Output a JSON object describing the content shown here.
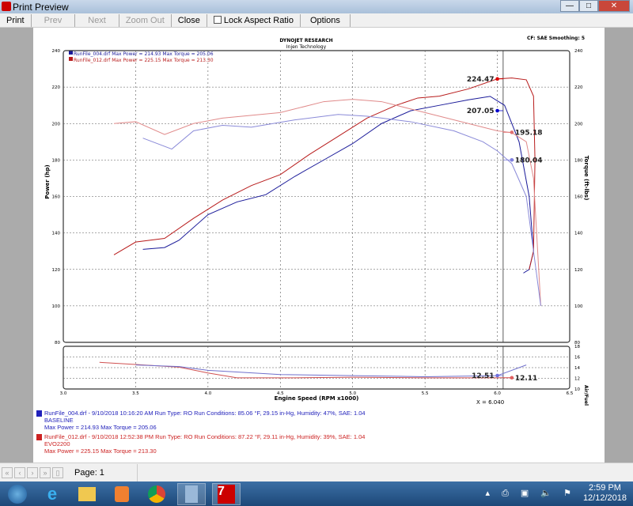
{
  "window": {
    "title": "Print Preview",
    "min": "—",
    "max": "□",
    "close": "✕"
  },
  "toolbar": {
    "print": "Print",
    "prev": "Prev",
    "next": "Next",
    "zoom_out": "Zoom Out",
    "close": "Close",
    "lock_aspect": "Lock Aspect Ratio",
    "lock_checked": false,
    "options": "Options"
  },
  "report": {
    "company": "DYNOJET RESEARCH",
    "subtitle": "Injen Technology",
    "settings": "CF: SAE  Smoothing: 5",
    "legend_top": [
      "RunFile_004.drf Max Power = 214.93    Max Torque = 205.06",
      "RunFile_012.drf Max Power = 225.15    Max Torque = 213.30"
    ],
    "cursor_label": "X = 6.040",
    "runs": [
      {
        "line1": "RunFile_004.drf - 9/10/2018 10:16:20 AM  Run Type: RO  Run Conditions: 85.06 °F, 29.15 in-Hg,  Humidity:  47%, SAE: 1.04",
        "line2": "BASELINE",
        "line3": "Max Power = 214.93  Max Torque = 205.06",
        "color": "#2222bb"
      },
      {
        "line1": "RunFile_012.drf - 9/10/2018 12:52:38 PM  Run Type: RO  Run Conditions: 87.22 °F, 29.11 in-Hg,  Humidity:  39%, SAE: 1.04",
        "line2": "EVO2200",
        "line3": "Max Power = 225.15  Max Torque = 213.30",
        "color": "#cc2222"
      }
    ]
  },
  "chart_data": {
    "type": "line",
    "xlabel": "Engine Speed (RPM x1000)",
    "ylabel": "Power (hp)",
    "y2label": "Torque (ft-lbs)",
    "afr_label": "Air/Fuel",
    "xlim": [
      3.0,
      6.5
    ],
    "ylim": [
      80,
      240
    ],
    "afr_ylim": [
      10,
      18
    ],
    "xticks": [
      "3.0",
      "3.5",
      "4.0",
      "4.5",
      "5.0",
      "5.5",
      "6.0",
      "6.5"
    ],
    "yticks": [
      "80",
      "100",
      "120",
      "140",
      "160",
      "180",
      "200",
      "220",
      "240"
    ],
    "afr_ticks": [
      "10",
      "12",
      "14",
      "16",
      "18"
    ],
    "cursor_x": 6.04,
    "series": [
      {
        "key": "power_004",
        "color": "#1a1a99",
        "x": [
          3.55,
          3.7,
          3.8,
          4.0,
          4.2,
          4.4,
          4.6,
          4.8,
          5.0,
          5.2,
          5.4,
          5.6,
          5.8,
          5.95,
          6.05,
          6.15,
          6.22,
          6.25,
          6.22,
          6.18
        ],
        "y": [
          131,
          132,
          136,
          150,
          157,
          161,
          171,
          180,
          189,
          200,
          207,
          210,
          213,
          214.9,
          210,
          190,
          160,
          130,
          120,
          118
        ]
      },
      {
        "key": "power_012",
        "color": "#b81c1c",
        "x": [
          3.35,
          3.5,
          3.7,
          3.9,
          4.1,
          4.3,
          4.5,
          4.7,
          4.9,
          5.1,
          5.3,
          5.45,
          5.6,
          5.8,
          6.0,
          6.1,
          6.2,
          6.25,
          6.26,
          6.25,
          6.22
        ],
        "y": [
          128,
          135,
          137,
          148,
          158,
          166,
          172,
          183,
          193,
          203,
          210,
          214,
          215,
          219,
          224.5,
          225,
          224,
          215,
          180,
          130,
          120
        ]
      },
      {
        "key": "torque_012",
        "color": "#e08a8a",
        "x": [
          3.35,
          3.5,
          3.7,
          3.9,
          4.1,
          4.5,
          4.8,
          5.0,
          5.2,
          5.5,
          5.8,
          6.0,
          6.1,
          6.2,
          6.25,
          6.3
        ],
        "y": [
          200,
          201,
          194,
          200,
          203,
          206,
          212,
          213.3,
          212,
          206,
          200,
          196,
          195,
          190,
          170,
          100
        ]
      },
      {
        "key": "torque_004",
        "color": "#8a8ad8",
        "x": [
          3.55,
          3.75,
          3.9,
          4.1,
          4.3,
          4.6,
          4.9,
          5.1,
          5.4,
          5.7,
          5.9,
          6.0,
          6.1,
          6.2,
          6.25,
          6.3
        ],
        "y": [
          192,
          186,
          196,
          199,
          198,
          202,
          205,
          204,
          201,
          196,
          190,
          185,
          178,
          160,
          130,
          100
        ]
      }
    ],
    "afr_series": [
      {
        "key": "afr_012",
        "color": "#d05050",
        "x": [
          3.25,
          3.5,
          3.8,
          4.0,
          4.2,
          4.6,
          5.0,
          5.5,
          6.0,
          6.1
        ],
        "y": [
          15,
          14.6,
          14.1,
          13,
          12.1,
          12.1,
          12.2,
          12.1,
          12.1,
          12.11
        ]
      },
      {
        "key": "afr_004",
        "color": "#7070cc",
        "x": [
          3.5,
          3.8,
          4.0,
          4.5,
          5.0,
          5.5,
          6.0,
          6.2
        ],
        "y": [
          14.5,
          14.2,
          13.5,
          12.7,
          12.5,
          12.3,
          12.5,
          14.5
        ]
      }
    ],
    "markers": [
      {
        "label": "224.47",
        "x": 6.0,
        "y": 224.47,
        "color": "#dd0000",
        "side": "left"
      },
      {
        "label": "207.05",
        "x": 6.0,
        "y": 207.05,
        "color": "#0000cc",
        "side": "left"
      },
      {
        "label": "195.18",
        "x": 6.1,
        "y": 195.18,
        "color": "#e07070",
        "side": "right"
      },
      {
        "label": "180.04",
        "x": 6.1,
        "y": 180.04,
        "color": "#8080e0",
        "side": "right"
      }
    ],
    "afr_markers": [
      {
        "label": "12.51",
        "x": 6.0,
        "y": 12.51,
        "color": "#7070dd",
        "side": "left"
      },
      {
        "label": "12.11",
        "x": 6.1,
        "y": 12.11,
        "color": "#e06060",
        "side": "right"
      }
    ]
  },
  "status": {
    "page": "Page: 1"
  },
  "taskbar": {
    "time": "2:59 PM",
    "date": "12/12/2018"
  }
}
